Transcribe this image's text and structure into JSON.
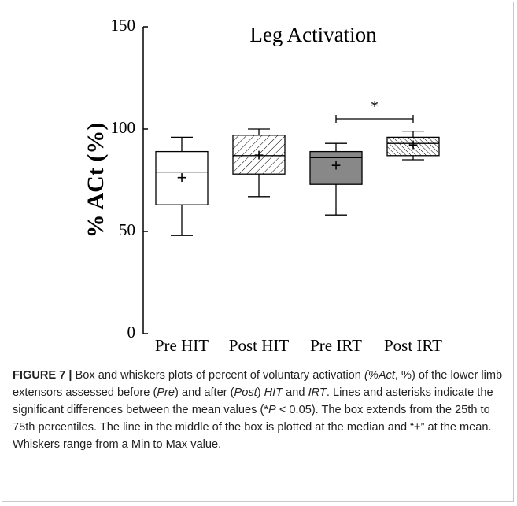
{
  "chart_data": {
    "type": "box",
    "title": "Leg Activation",
    "y_label": "% ACt (%)",
    "categories": [
      "Pre HIT",
      "Post HIT",
      "Pre IRT",
      "Post IRT"
    ],
    "series": [
      {
        "min": 48,
        "q1": 63,
        "median": 79,
        "q3": 89,
        "max": 96,
        "mean": 76,
        "color": "#ffffff",
        "hatch": "none"
      },
      {
        "min": 67,
        "q1": 78,
        "median": 87,
        "q3": 97,
        "max": 100,
        "mean": 87,
        "color": "#ffffff",
        "hatch": "/"
      },
      {
        "min": 58,
        "q1": 73,
        "median": 86,
        "q3": 89,
        "max": 93,
        "mean": 82,
        "color": "#888888",
        "hatch": "none"
      },
      {
        "min": 85,
        "q1": 87,
        "median": 93,
        "q3": 96,
        "max": 99,
        "mean": 92,
        "color": "#ffffff",
        "hatch": "\\"
      }
    ],
    "mean_marker": "+",
    "annotations": [
      {
        "text": "*",
        "from": 2,
        "to": 3,
        "y": 105
      }
    ],
    "ylim": [
      0,
      150
    ],
    "yticks": [
      0,
      50,
      100,
      150
    ]
  },
  "caption": {
    "label": "FIGURE 7 |",
    "runs": [
      {
        "text": " Box and whiskers plots of percent of voluntary activation ",
        "italic": false
      },
      {
        "text": "(%Act",
        "italic": true
      },
      {
        "text": ", %) of the lower limb extensors assessed before (",
        "italic": false
      },
      {
        "text": "Pre",
        "italic": true
      },
      {
        "text": ") and after (",
        "italic": false
      },
      {
        "text": "Post",
        "italic": true
      },
      {
        "text": ") ",
        "italic": false
      },
      {
        "text": "HIT",
        "italic": true
      },
      {
        "text": " and ",
        "italic": false
      },
      {
        "text": "IRT",
        "italic": true
      },
      {
        "text": ". Lines and asterisks indicate the significant differences between the mean values (*",
        "italic": false
      },
      {
        "text": "P",
        "italic": true
      },
      {
        "text": " < 0.05). The box extends from the 25th to 75th percentiles. The line in the middle of the box is plotted at the median and “+” at the mean. Whiskers range from a Min to Max value.",
        "italic": false
      }
    ]
  }
}
